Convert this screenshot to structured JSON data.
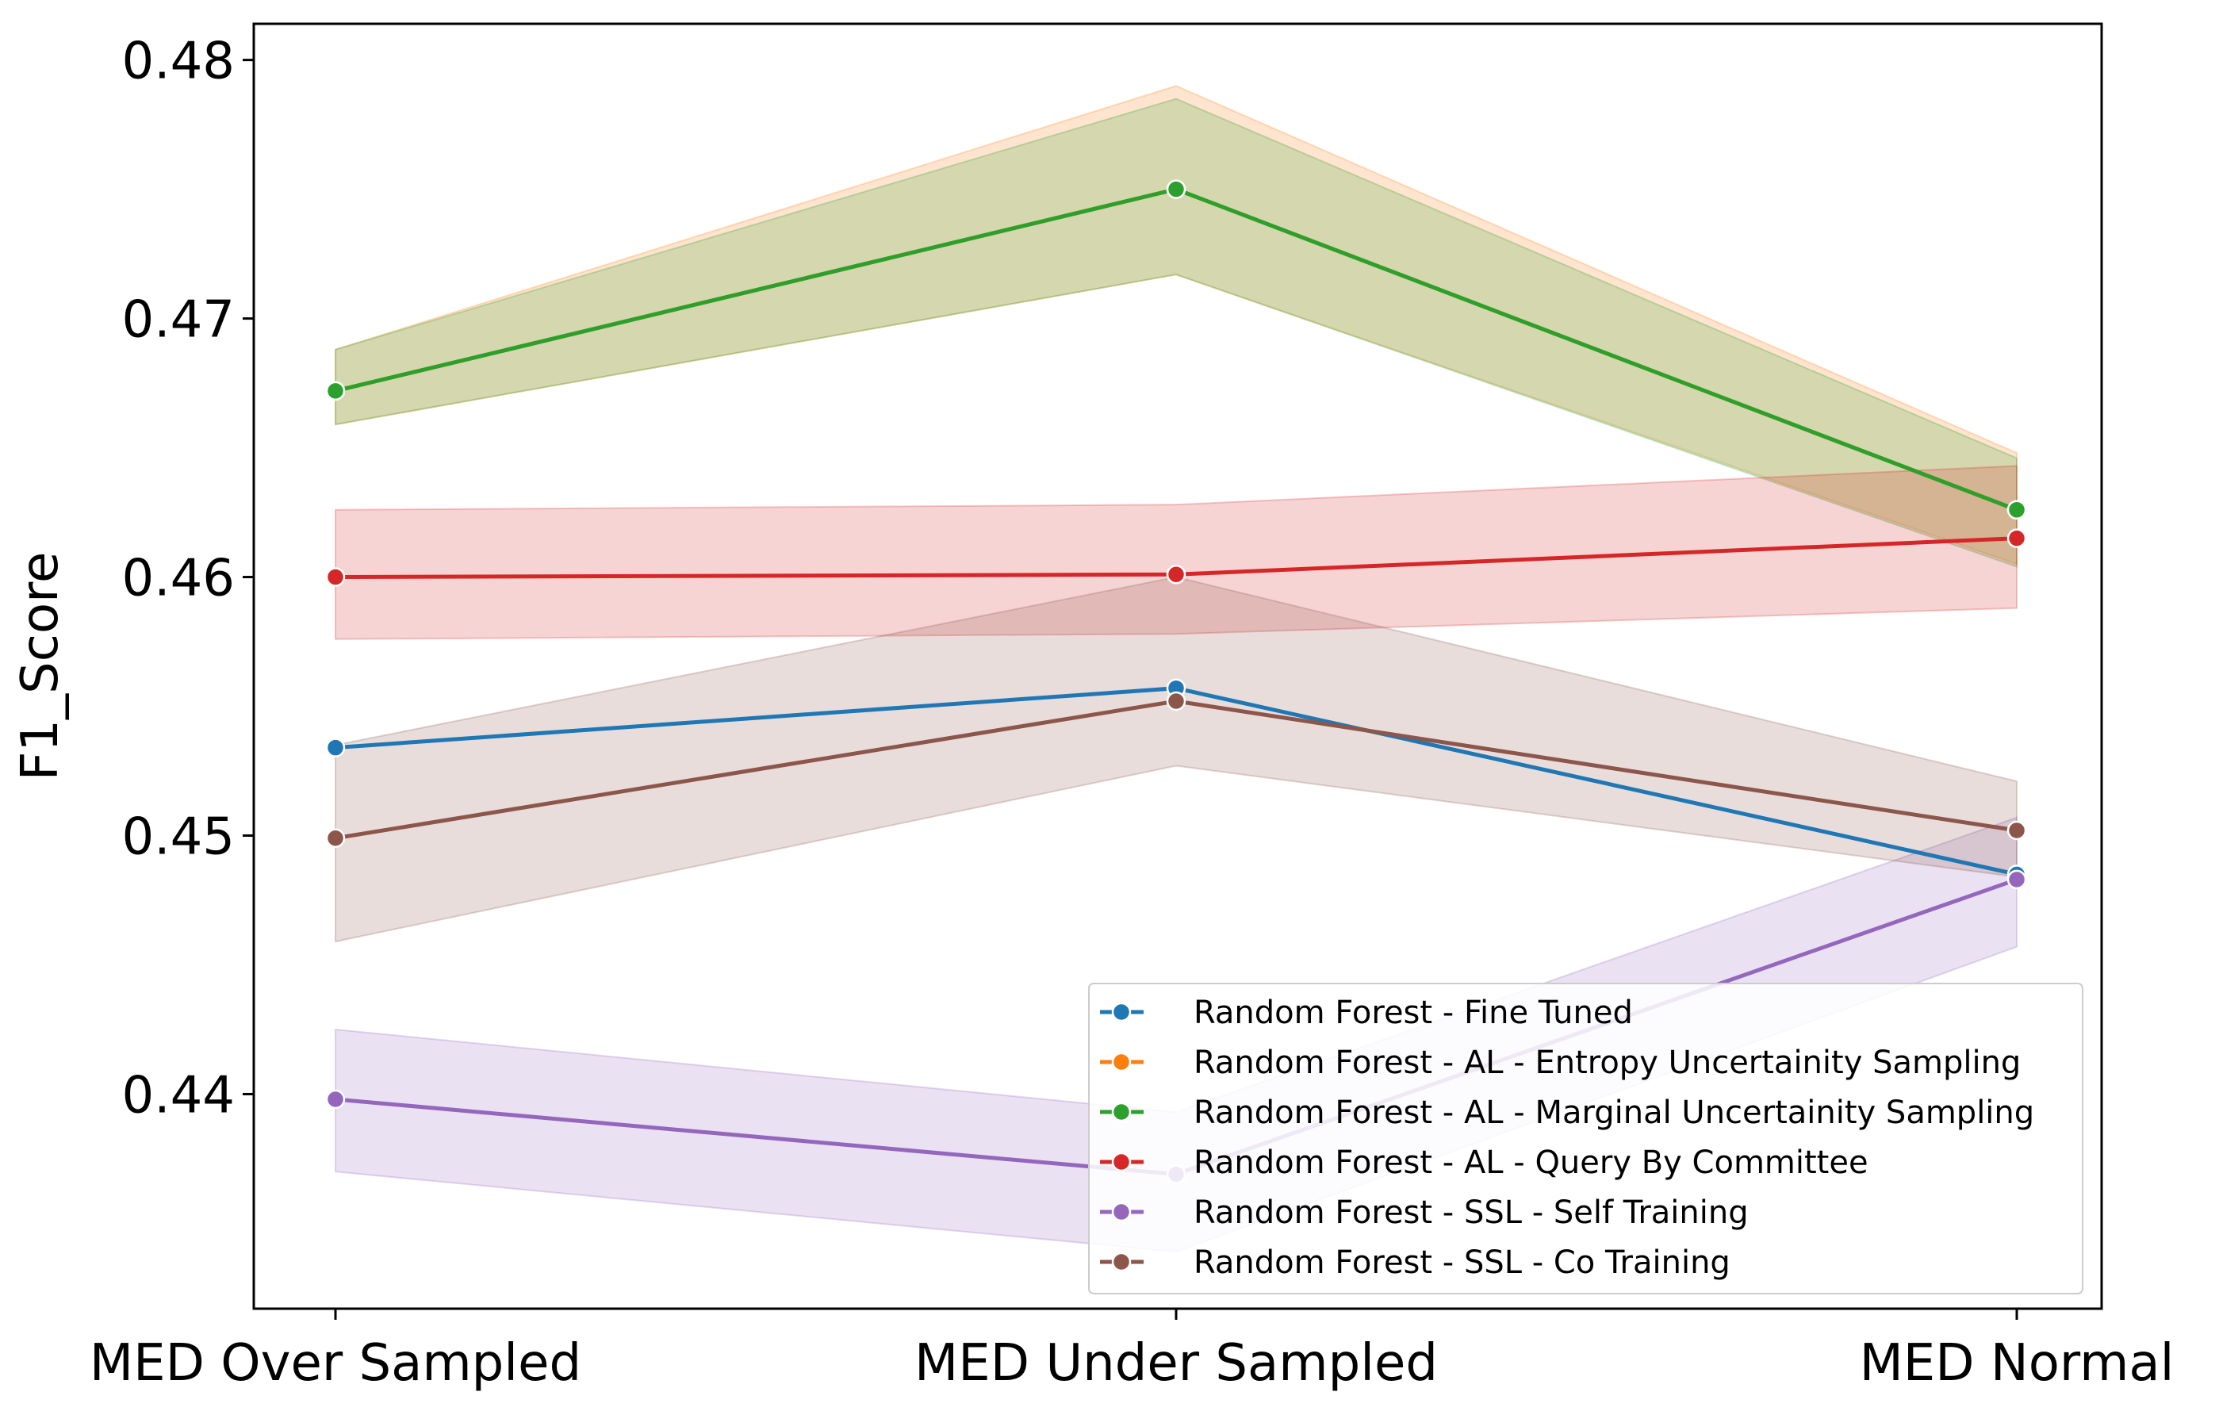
{
  "chart_data": {
    "type": "line",
    "xlabel": "",
    "ylabel": "F1_Score",
    "categories": [
      "MED Over Sampled",
      "MED Under Sampled",
      "MED Normal"
    ],
    "ylim": [
      0.4317,
      0.4814
    ],
    "yticks": [
      0.44,
      0.45,
      0.46,
      0.47,
      0.48
    ],
    "ytick_labels": [
      "0.44",
      "0.45",
      "0.46",
      "0.47",
      "0.48"
    ],
    "grid": false,
    "legend_position": "lower-right",
    "series": [
      {
        "name": "Random Forest - Fine Tuned",
        "color": "#1f77b4",
        "values": [
          0.4534,
          0.4557,
          0.4485
        ],
        "ci_low": null,
        "ci_high": null
      },
      {
        "name": "Random Forest - AL - Entropy Uncertainity Sampling",
        "color": "#ff7f0e",
        "values": [
          0.4672,
          0.475,
          0.4626
        ],
        "ci_low": [
          0.4659,
          0.4717,
          0.4605
        ],
        "ci_high": [
          0.4688,
          0.479,
          0.4648
        ]
      },
      {
        "name": "Random Forest - AL - Marginal Uncertainity Sampling",
        "color": "#2ca02c",
        "values": [
          0.4672,
          0.475,
          0.4626
        ],
        "ci_low": [
          0.4659,
          0.4717,
          0.4604
        ],
        "ci_high": [
          0.4688,
          0.4785,
          0.4646
        ]
      },
      {
        "name": "Random Forest - AL - Query By Committee",
        "color": "#d62728",
        "values": [
          0.46,
          0.4601,
          0.4615
        ],
        "ci_low": [
          0.4576,
          0.4578,
          0.4588
        ],
        "ci_high": [
          0.4626,
          0.4628,
          0.4643
        ]
      },
      {
        "name": "Random Forest - SSL - Self Training",
        "color": "#9467bd",
        "values": [
          0.4398,
          0.4369,
          0.4483
        ],
        "ci_low": [
          0.437,
          0.4339,
          0.4457
        ],
        "ci_high": [
          0.4425,
          0.4393,
          0.4507
        ]
      },
      {
        "name": "Random Forest - SSL - Co Training",
        "color": "#8c564b",
        "values": [
          0.4499,
          0.4552,
          0.4502
        ],
        "ci_low": [
          0.4459,
          0.4527,
          0.4484
        ],
        "ci_high": [
          0.4535,
          0.46,
          0.4521
        ]
      }
    ]
  }
}
